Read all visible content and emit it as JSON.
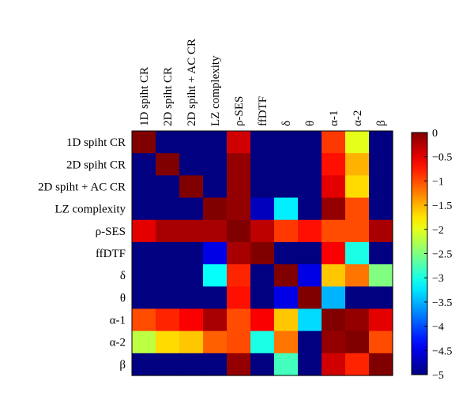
{
  "chart_data": {
    "type": "heatmap",
    "title": "",
    "xlabel": "",
    "ylabel": "",
    "row_labels": [
      "1D spiht CR",
      "2D spiht CR",
      "2D spiht + AC CR",
      "LZ complexity",
      "ρ-SES",
      "ffDTF",
      "δ",
      "θ",
      "α-1",
      "α-2",
      "β"
    ],
    "col_labels": [
      "1D spiht CR",
      "2D spiht CR",
      "2D spiht + AC CR",
      "LZ complexity",
      "ρ-SES",
      "ffDTF",
      "δ",
      "θ",
      "α-1",
      "α-2",
      "β"
    ],
    "values": [
      [
        0,
        -5,
        -5,
        -5,
        -0.4,
        -5,
        -5,
        -5,
        -0.9,
        -2.0,
        -5
      ],
      [
        -5,
        0,
        -5,
        -5,
        -0.1,
        -5,
        -5,
        -5,
        -0.7,
        -1.5,
        -5
      ],
      [
        -5,
        -5,
        0,
        -5,
        -0.1,
        -5,
        -5,
        -5,
        -0.5,
        -1.7,
        -5
      ],
      [
        -5,
        -5,
        -5,
        0,
        -0.1,
        -4.7,
        -3.2,
        -5,
        -0.1,
        -1.0,
        -5
      ],
      [
        -0.5,
        -0.2,
        -0.2,
        -0.2,
        0,
        -0.3,
        -0.9,
        -0.7,
        -1.0,
        -1.0,
        -0.2
      ],
      [
        -5,
        -5,
        -5,
        -4.5,
        -0.2,
        0,
        -5,
        -5,
        -0.6,
        -3.0,
        -5
      ],
      [
        -5,
        -5,
        -5,
        -3.1,
        -0.8,
        -5,
        0,
        -4.5,
        -1.6,
        -1.2,
        -2.5
      ],
      [
        -5,
        -5,
        -5,
        -5,
        -0.7,
        -5,
        -4.5,
        0,
        -3.5,
        -5,
        -5
      ],
      [
        -1.0,
        -0.8,
        -0.6,
        -0.2,
        -1.0,
        -0.6,
        -1.6,
        -3.3,
        0,
        -0.1,
        -0.5
      ],
      [
        -2.2,
        -1.7,
        -1.6,
        -1.1,
        -1.0,
        -3.0,
        -1.2,
        -5,
        -0.1,
        0,
        -1.0
      ],
      [
        -5,
        -5,
        -5,
        -5,
        -0.1,
        -5,
        -2.8,
        -5,
        -0.4,
        -0.8,
        0
      ]
    ],
    "colorbar": {
      "min": -5,
      "max": 0,
      "ticks": [
        0,
        -0.5,
        -1,
        -1.5,
        -2,
        -2.5,
        -3,
        -3.5,
        -4,
        -4.5,
        -5
      ],
      "tick_labels": [
        "0",
        "−0.5",
        "−1",
        "−1.5",
        "−2",
        "−2.5",
        "−3",
        "−3.5",
        "−4",
        "−4.5",
        "−5"
      ],
      "colormap": "jet"
    }
  }
}
